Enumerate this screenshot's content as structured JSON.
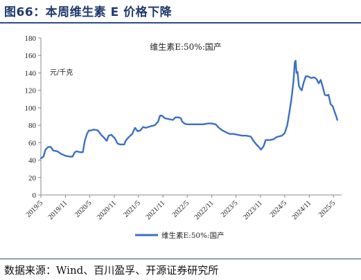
{
  "header": {
    "title": "图66：本周维生素 E 价格下降"
  },
  "footer": {
    "source": "数据来源：Wind、百川盈孚、开源证券研究所"
  },
  "colors": {
    "series": "#3b6fc6",
    "title": "#1f3a6d",
    "rule": "#2b4c85",
    "axis": "#888888"
  },
  "chart_data": {
    "type": "line",
    "title": "维生素E:50%:国产",
    "ylabel": "元/千克",
    "ylim": [
      0,
      180
    ],
    "yticks": [
      "0",
      "20",
      "40",
      "60",
      "80",
      "100",
      "120",
      "140",
      "160",
      "180"
    ],
    "xlim": [
      "2019-05",
      "2025-07"
    ],
    "xticks": [
      "2019/5",
      "2019/11",
      "2020/5",
      "2020/11",
      "2021/5",
      "2021/11",
      "2022/5",
      "2022/11",
      "2023/5",
      "2023/11",
      "2024/5",
      "2024/11",
      "2025/5"
    ],
    "grid": false,
    "legend": {
      "position": "bottom-center"
    },
    "series": [
      {
        "name": "维生素E:50%:国产",
        "points": [
          [
            "2019-05-01",
            42
          ],
          [
            "2019-05-20",
            44
          ],
          [
            "2019-06-05",
            52
          ],
          [
            "2019-06-25",
            55
          ],
          [
            "2019-07-15",
            55
          ],
          [
            "2019-08-01",
            51
          ],
          [
            "2019-09-01",
            50
          ],
          [
            "2019-10-01",
            47
          ],
          [
            "2019-11-01",
            45
          ],
          [
            "2019-12-01",
            44
          ],
          [
            "2019-12-25",
            44
          ],
          [
            "2020-01-10",
            49
          ],
          [
            "2020-01-25",
            50
          ],
          [
            "2020-02-20",
            49
          ],
          [
            "2020-03-10",
            49
          ],
          [
            "2020-03-25",
            62
          ],
          [
            "2020-04-10",
            70
          ],
          [
            "2020-04-25",
            74
          ],
          [
            "2020-05-10",
            74
          ],
          [
            "2020-06-01",
            75
          ],
          [
            "2020-07-01",
            74
          ],
          [
            "2020-07-25",
            69
          ],
          [
            "2020-08-20",
            65
          ],
          [
            "2020-09-05",
            62
          ],
          [
            "2020-09-20",
            68
          ],
          [
            "2020-10-10",
            69
          ],
          [
            "2020-11-05",
            65
          ],
          [
            "2020-11-25",
            59
          ],
          [
            "2020-12-15",
            58
          ],
          [
            "2021-01-15",
            58
          ],
          [
            "2021-01-25",
            62
          ],
          [
            "2021-02-15",
            66
          ],
          [
            "2021-03-15",
            70
          ],
          [
            "2021-04-05",
            77
          ],
          [
            "2021-04-25",
            73
          ],
          [
            "2021-05-15",
            74
          ],
          [
            "2021-06-05",
            78
          ],
          [
            "2021-06-25",
            77
          ],
          [
            "2021-07-15",
            78
          ],
          [
            "2021-08-05",
            79
          ],
          [
            "2021-09-01",
            80
          ],
          [
            "2021-09-25",
            84
          ],
          [
            "2021-10-10",
            91
          ],
          [
            "2021-10-25",
            91
          ],
          [
            "2021-11-15",
            88
          ],
          [
            "2021-12-15",
            87
          ],
          [
            "2022-01-15",
            86
          ],
          [
            "2022-02-01",
            89
          ],
          [
            "2022-02-25",
            89
          ],
          [
            "2022-03-15",
            88
          ],
          [
            "2022-03-25",
            84
          ],
          [
            "2022-04-10",
            82
          ],
          [
            "2022-05-01",
            81
          ],
          [
            "2022-06-01",
            81
          ],
          [
            "2022-07-01",
            81
          ],
          [
            "2022-08-01",
            81
          ],
          [
            "2022-09-01",
            81
          ],
          [
            "2022-10-01",
            82
          ],
          [
            "2022-11-01",
            82
          ],
          [
            "2022-12-01",
            81
          ],
          [
            "2022-12-25",
            77
          ],
          [
            "2023-01-20",
            74
          ],
          [
            "2023-02-15",
            72
          ],
          [
            "2023-03-15",
            70
          ],
          [
            "2023-04-15",
            70
          ],
          [
            "2023-05-15",
            69
          ],
          [
            "2023-06-15",
            68
          ],
          [
            "2023-07-15",
            68
          ],
          [
            "2023-08-20",
            67
          ],
          [
            "2023-09-10",
            62
          ],
          [
            "2023-10-01",
            58
          ],
          [
            "2023-10-20",
            55
          ],
          [
            "2023-11-05",
            52
          ],
          [
            "2023-11-25",
            56
          ],
          [
            "2023-12-10",
            63
          ],
          [
            "2024-01-10",
            63
          ],
          [
            "2024-02-10",
            64
          ],
          [
            "2024-02-25",
            66
          ],
          [
            "2024-03-15",
            67
          ],
          [
            "2024-04-10",
            68
          ],
          [
            "2024-05-01",
            71
          ],
          [
            "2024-05-20",
            80
          ],
          [
            "2024-06-05",
            95
          ],
          [
            "2024-06-20",
            110
          ],
          [
            "2024-07-05",
            130
          ],
          [
            "2024-07-15",
            152
          ],
          [
            "2024-07-22",
            154
          ],
          [
            "2024-07-28",
            140
          ],
          [
            "2024-08-05",
            141
          ],
          [
            "2024-08-15",
            125
          ],
          [
            "2024-08-25",
            122
          ],
          [
            "2024-09-05",
            120
          ],
          [
            "2024-09-20",
            129
          ],
          [
            "2024-10-05",
            136
          ],
          [
            "2024-10-25",
            136
          ],
          [
            "2024-11-15",
            134
          ],
          [
            "2024-12-05",
            135
          ],
          [
            "2024-12-25",
            133
          ],
          [
            "2025-01-10",
            128
          ],
          [
            "2025-01-25",
            132
          ],
          [
            "2025-02-10",
            124
          ],
          [
            "2025-02-25",
            115
          ],
          [
            "2025-03-10",
            114
          ],
          [
            "2025-03-25",
            115
          ],
          [
            "2025-04-10",
            104
          ],
          [
            "2025-04-25",
            102
          ],
          [
            "2025-05-10",
            95
          ],
          [
            "2025-05-20",
            91
          ],
          [
            "2025-05-30",
            86
          ]
        ]
      }
    ]
  }
}
